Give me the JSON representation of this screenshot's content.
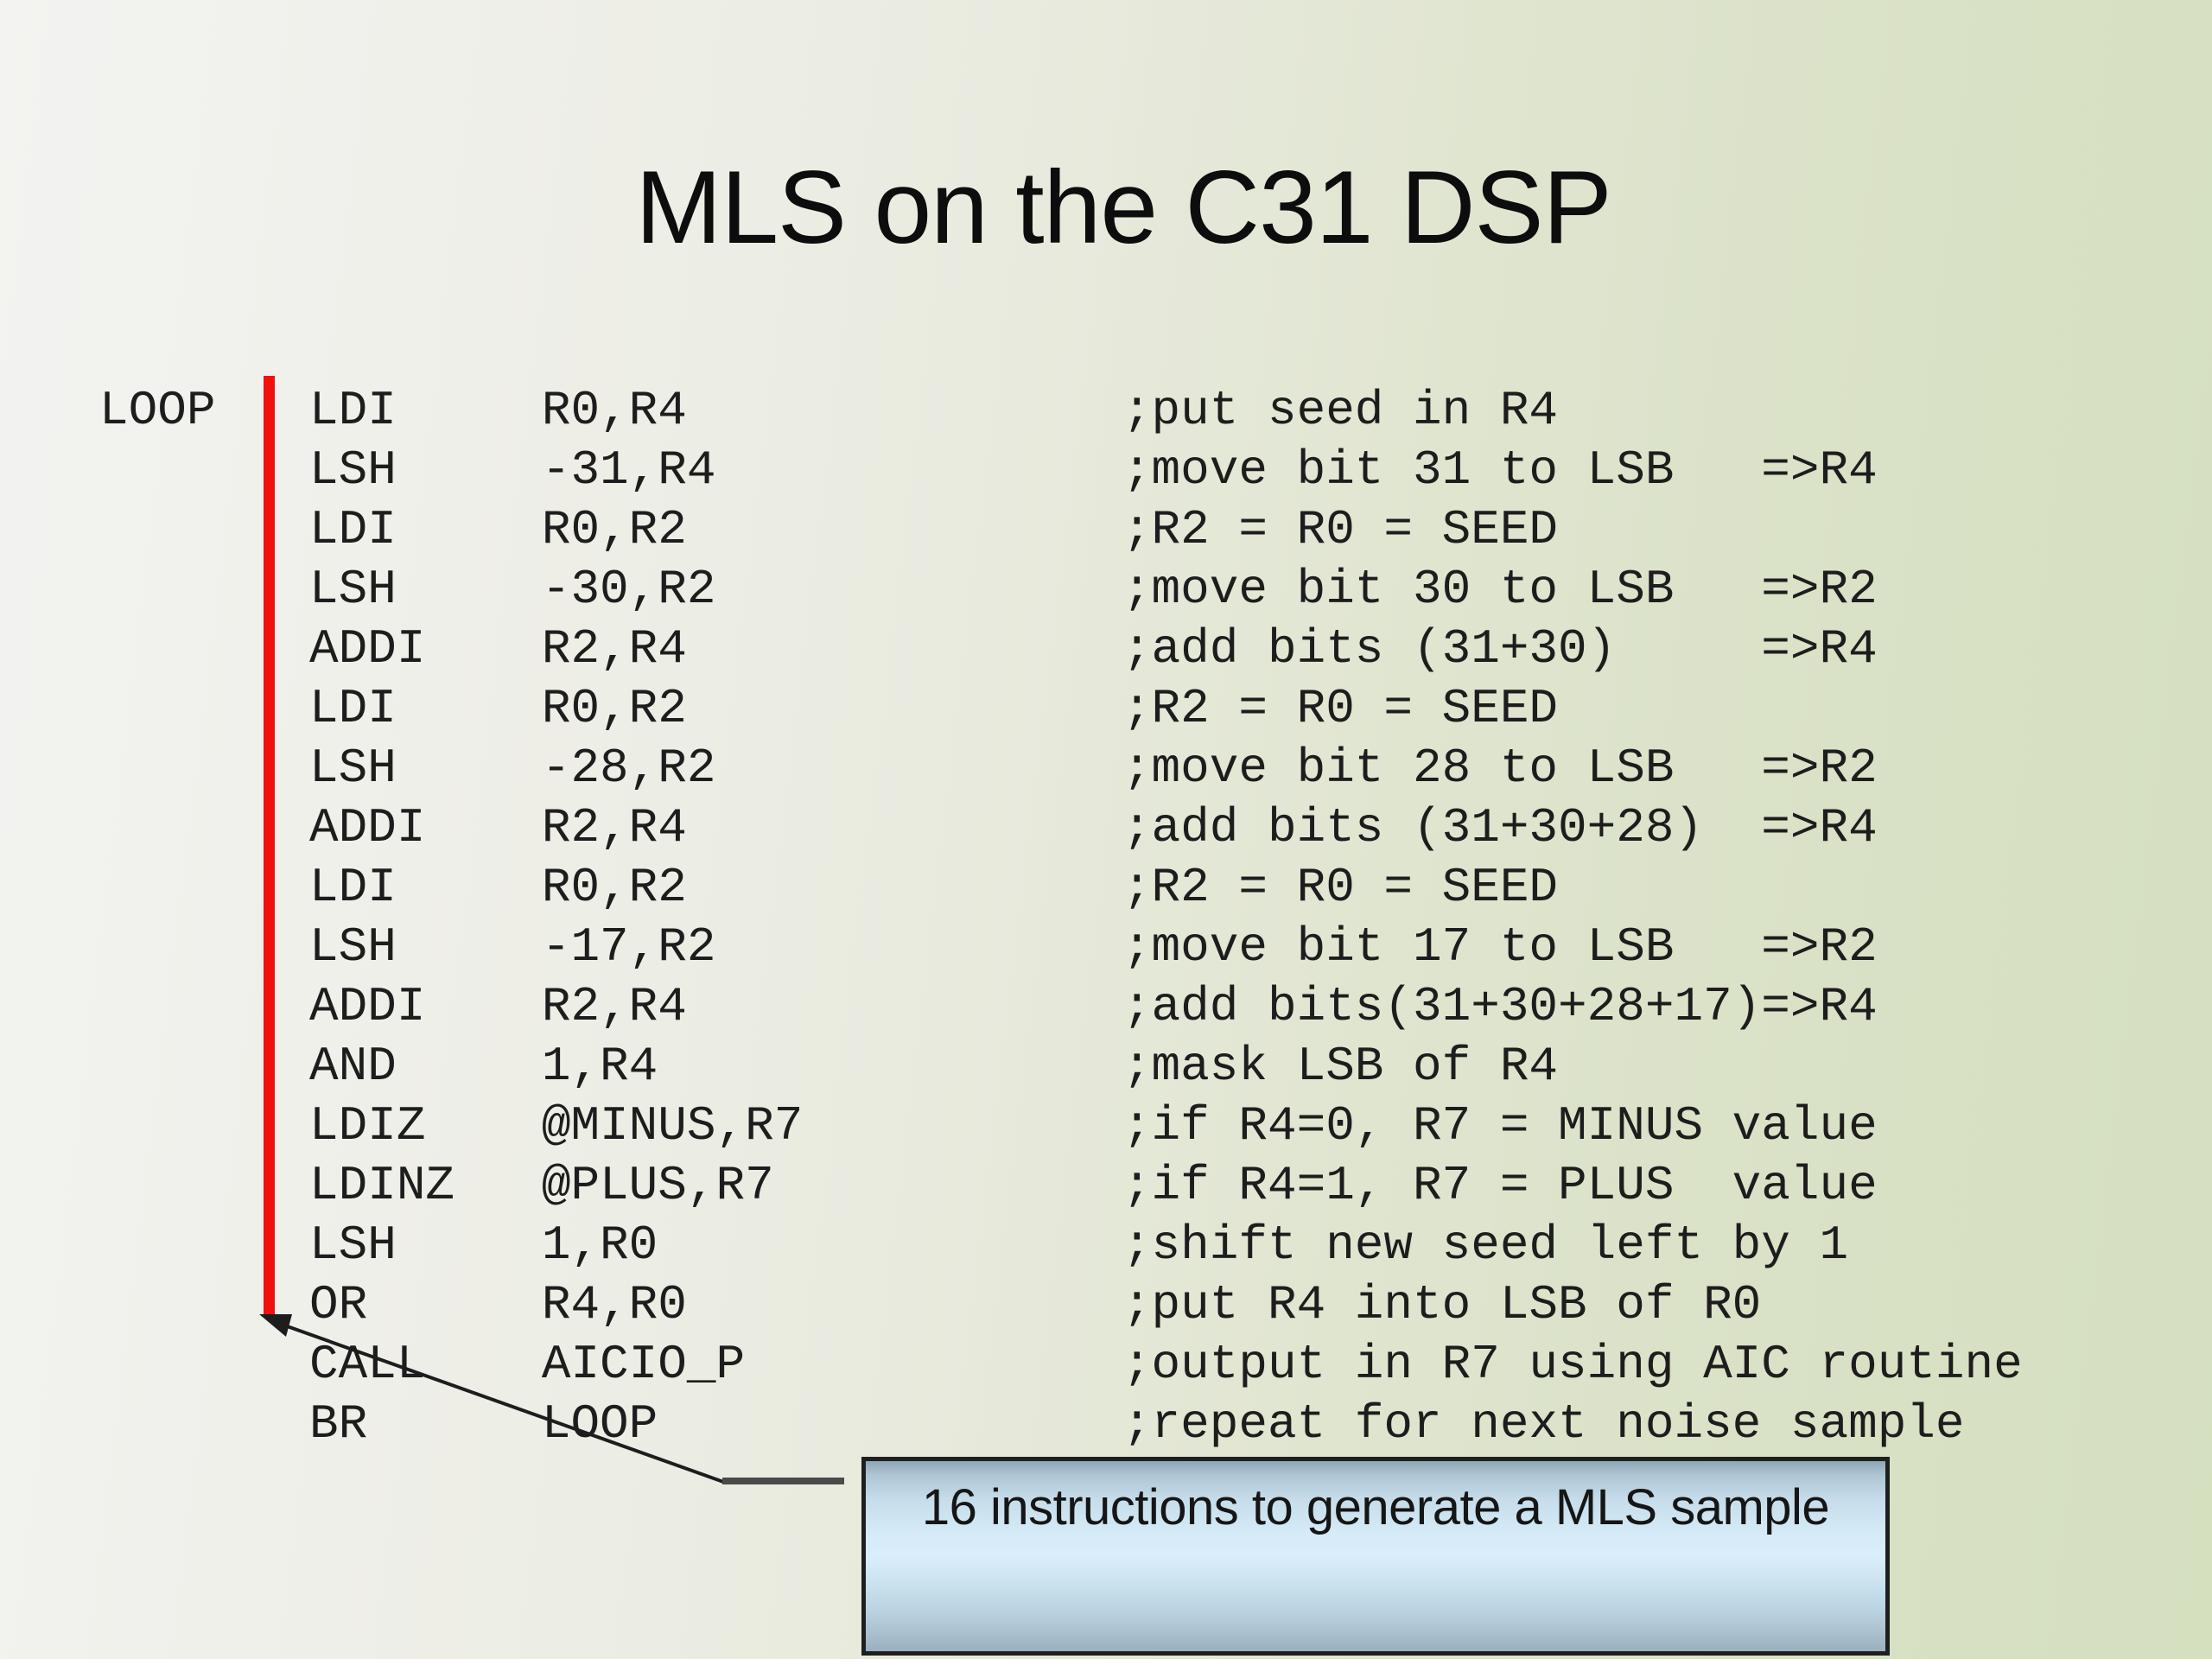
{
  "title": "MLS on the C31 DSP",
  "code": {
    "label": "LOOP",
    "lines": [
      {
        "mnemonic": "LDI",
        "operands": "R0,R4",
        "comment": ";put seed in R4"
      },
      {
        "mnemonic": "LSH",
        "operands": "-31,R4",
        "comment": ";move bit 31 to LSB   =>R4"
      },
      {
        "mnemonic": "LDI",
        "operands": "R0,R2",
        "comment": ";R2 = R0 = SEED"
      },
      {
        "mnemonic": "LSH",
        "operands": "-30,R2",
        "comment": ";move bit 30 to LSB   =>R2"
      },
      {
        "mnemonic": "ADDI",
        "operands": "R2,R4",
        "comment": ";add bits (31+30)     =>R4"
      },
      {
        "mnemonic": "LDI",
        "operands": "R0,R2",
        "comment": ";R2 = R0 = SEED"
      },
      {
        "mnemonic": "LSH",
        "operands": "-28,R2",
        "comment": ";move bit 28 to LSB   =>R2"
      },
      {
        "mnemonic": "ADDI",
        "operands": "R2,R4",
        "comment": ";add bits (31+30+28)  =>R4"
      },
      {
        "mnemonic": "LDI",
        "operands": "R0,R2",
        "comment": ";R2 = R0 = SEED"
      },
      {
        "mnemonic": "LSH",
        "operands": "-17,R2",
        "comment": ";move bit 17 to LSB   =>R2"
      },
      {
        "mnemonic": "ADDI",
        "operands": "R2,R4",
        "comment": ";add bits(31+30+28+17)=>R4"
      },
      {
        "mnemonic": "AND",
        "operands": "1,R4",
        "comment": ";mask LSB of R4"
      },
      {
        "mnemonic": "LDIZ",
        "operands": "@MINUS,R7",
        "comment": ";if R4=0, R7 = MINUS value"
      },
      {
        "mnemonic": "LDINZ",
        "operands": "@PLUS,R7",
        "comment": ";if R4=1, R7 = PLUS  value"
      },
      {
        "mnemonic": "LSH",
        "operands": "1,R0",
        "comment": ";shift new seed left by 1"
      },
      {
        "mnemonic": "OR",
        "operands": "R4,R0",
        "comment": ";put R4 into LSB of R0"
      },
      {
        "mnemonic": "CALL",
        "operands": "AICIO_P",
        "comment": ";output in R7 using AIC routine"
      },
      {
        "mnemonic": "BR",
        "operands": "LOOP",
        "comment": ";repeat for next noise sample"
      }
    ]
  },
  "callout": {
    "text": "16 instructions to generate a MLS sample"
  },
  "colors": {
    "background_left": "#f3f3f1",
    "background_right": "#d5e0bf",
    "loop_bracket_red": "#f01010",
    "code_text": "#1d1d1d",
    "title_text": "#0d0d0d",
    "callout_border": "#1f1f1f",
    "callout_fill_light": "#d9eefa",
    "callout_fill_dark": "#8fa6b6",
    "leader_line": "#1d1d1d"
  }
}
